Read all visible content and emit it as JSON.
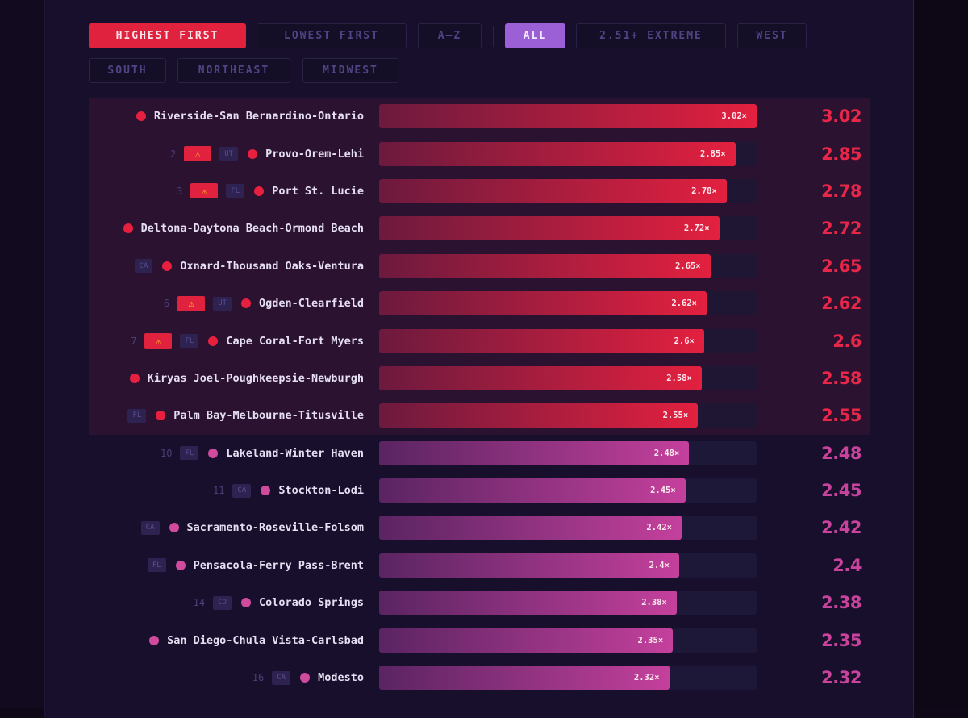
{
  "sort_buttons": [
    {
      "label": "HIGHEST FIRST",
      "active": true
    },
    {
      "label": "LOWEST FIRST",
      "active": false
    },
    {
      "label": "A–Z",
      "active": false
    }
  ],
  "filter_buttons": [
    {
      "label": "ALL",
      "active": true
    },
    {
      "label": "2.51+ EXTREME",
      "active": false
    },
    {
      "label": "WEST",
      "active": false
    },
    {
      "label": "SOUTH",
      "active": false
    },
    {
      "label": "NORTHEAST",
      "active": false
    },
    {
      "label": "MIDWEST",
      "active": false
    }
  ],
  "colors": {
    "extreme": "#e8264a",
    "high": "#c8439c",
    "sort_active": "#e0223f",
    "filter_active": "#9b5fd6"
  },
  "max_value": 3.02,
  "rows": [
    {
      "name": "Riverside-San Bernardino-Ontario",
      "value": 3.02,
      "bar_label": "3.02×",
      "tier": "extreme"
    },
    {
      "rank": "2",
      "warning": true,
      "state": "UT",
      "name": "Provo-Orem-Lehi",
      "value": 2.85,
      "bar_label": "2.85×",
      "tier": "extreme"
    },
    {
      "rank": "3",
      "warning": true,
      "state": "FL",
      "name": "Port St. Lucie",
      "value": 2.78,
      "bar_label": "2.78×",
      "tier": "extreme"
    },
    {
      "name": "Deltona-Daytona Beach-Ormond Beach",
      "value": 2.72,
      "bar_label": "2.72×",
      "tier": "extreme"
    },
    {
      "state": "CA",
      "name": "Oxnard-Thousand Oaks-Ventura",
      "value": 2.65,
      "bar_label": "2.65×",
      "tier": "extreme"
    },
    {
      "rank": "6",
      "warning": true,
      "state": "UT",
      "name": "Ogden-Clearfield",
      "value": 2.62,
      "bar_label": "2.62×",
      "tier": "extreme"
    },
    {
      "rank": "7",
      "warning": true,
      "state": "FL",
      "name": "Cape Coral-Fort Myers",
      "value": 2.6,
      "bar_label": "2.6×",
      "tier": "extreme"
    },
    {
      "name": "Kiryas Joel-Poughkeepsie-Newburgh",
      "value": 2.58,
      "bar_label": "2.58×",
      "tier": "extreme"
    },
    {
      "state": "FL",
      "name": "Palm Bay-Melbourne-Titusville",
      "value": 2.55,
      "bar_label": "2.55×",
      "tier": "extreme"
    },
    {
      "rank": "10",
      "state": "FL",
      "name": "Lakeland-Winter Haven",
      "value": 2.48,
      "bar_label": "2.48×",
      "tier": "high"
    },
    {
      "rank": "11",
      "state": "CA",
      "name": "Stockton-Lodi",
      "value": 2.45,
      "bar_label": "2.45×",
      "tier": "high"
    },
    {
      "state": "CA",
      "name": "Sacramento-Roseville-Folsom",
      "value": 2.42,
      "bar_label": "2.42×",
      "tier": "high"
    },
    {
      "state": "FL",
      "name": "Pensacola-Ferry Pass-Brent",
      "value": 2.4,
      "bar_label": "2.4×",
      "tier": "high"
    },
    {
      "rank": "14",
      "state": "CO",
      "name": "Colorado Springs",
      "value": 2.38,
      "bar_label": "2.38×",
      "tier": "high"
    },
    {
      "name": "San Diego-Chula Vista-Carlsbad",
      "value": 2.35,
      "bar_label": "2.35×",
      "tier": "high"
    },
    {
      "rank": "16",
      "state": "CA",
      "name": "Modesto",
      "value": 2.32,
      "bar_label": "2.32×",
      "tier": "high"
    }
  ]
}
